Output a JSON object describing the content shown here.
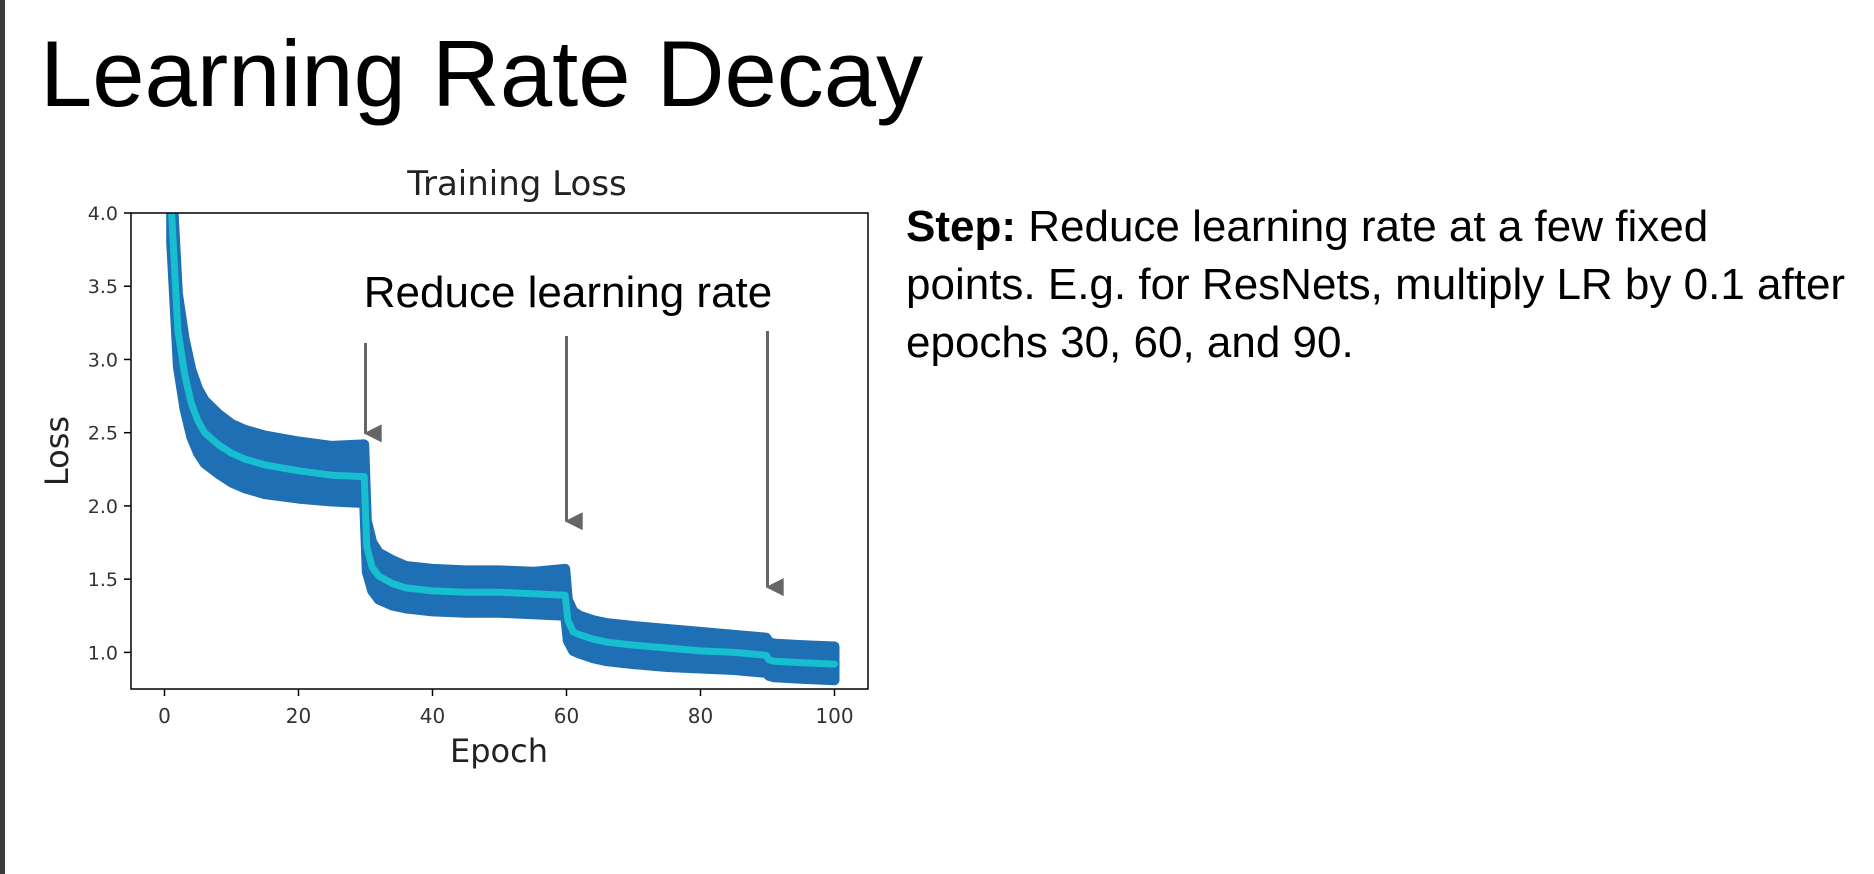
{
  "slide": {
    "title": "Learning Rate Decay",
    "step_label": "Step:",
    "step_text": " Reduce learning rate at a few fixed points. E.g. for ResNets, multiply LR by 0.1 after epochs 30, 60, and 90."
  },
  "chart_data": {
    "type": "line",
    "title": "Training Loss",
    "xlabel": "Epoch",
    "ylabel": "Loss",
    "xlim": [
      -5,
      105
    ],
    "ylim": [
      0.75,
      4.0
    ],
    "xticks": [
      0,
      20,
      40,
      60,
      80,
      100
    ],
    "yticks": [
      1.0,
      1.5,
      2.0,
      2.5,
      3.0,
      3.5,
      4.0
    ],
    "ytick_labels": [
      "1.0",
      "1.5",
      "2.0",
      "2.5",
      "3.0",
      "3.5",
      "4.0"
    ],
    "grid": false,
    "colors": {
      "raw": "#1f6fb4",
      "smoothed": "#17becf",
      "arrow": "#666666"
    },
    "series": [
      {
        "role": "smoothed",
        "x": [
          1,
          2,
          3,
          4,
          5,
          6,
          8,
          10,
          12,
          15,
          20,
          25,
          29.8,
          30.2,
          31,
          32,
          34,
          36,
          40,
          45,
          50,
          55,
          59.8,
          60.2,
          61,
          62,
          64,
          66,
          70,
          75,
          80,
          85,
          89.8,
          90.2,
          91,
          95,
          100
        ],
        "y": [
          4.05,
          3.2,
          2.9,
          2.7,
          2.58,
          2.5,
          2.42,
          2.36,
          2.32,
          2.28,
          2.24,
          2.21,
          2.2,
          1.72,
          1.58,
          1.52,
          1.47,
          1.44,
          1.42,
          1.41,
          1.41,
          1.4,
          1.39,
          1.22,
          1.14,
          1.12,
          1.09,
          1.07,
          1.05,
          1.03,
          1.01,
          1.0,
          0.98,
          0.95,
          0.94,
          0.93,
          0.92
        ]
      },
      {
        "role": "raw_band",
        "x": [
          1,
          2,
          3,
          4,
          5,
          6,
          8,
          10,
          12,
          15,
          20,
          25,
          29.8,
          30.2,
          31,
          32,
          34,
          36,
          40,
          45,
          50,
          55,
          59.8,
          60.2,
          61,
          62,
          64,
          66,
          70,
          75,
          80,
          85,
          89.8,
          90.2,
          91,
          95,
          100
        ],
        "y_low": [
          3.8,
          2.95,
          2.66,
          2.47,
          2.36,
          2.29,
          2.22,
          2.16,
          2.12,
          2.08,
          2.05,
          2.03,
          2.02,
          1.55,
          1.42,
          1.36,
          1.32,
          1.3,
          1.28,
          1.27,
          1.27,
          1.26,
          1.25,
          1.08,
          1.01,
          0.99,
          0.96,
          0.94,
          0.92,
          0.9,
          0.89,
          0.88,
          0.86,
          0.84,
          0.83,
          0.82,
          0.81
        ],
        "y_high": [
          4.3,
          3.45,
          3.14,
          2.93,
          2.8,
          2.72,
          2.63,
          2.56,
          2.52,
          2.48,
          2.44,
          2.41,
          2.42,
          1.9,
          1.75,
          1.68,
          1.63,
          1.59,
          1.57,
          1.56,
          1.56,
          1.55,
          1.57,
          1.36,
          1.28,
          1.25,
          1.22,
          1.2,
          1.18,
          1.16,
          1.14,
          1.12,
          1.1,
          1.07,
          1.06,
          1.05,
          1.04
        ]
      }
    ],
    "annotations": {
      "text": "Reduce learning rate",
      "arrows": [
        {
          "x": 30,
          "tip_y": 2.4
        },
        {
          "x": 60,
          "tip_y": 1.8
        },
        {
          "x": 90,
          "tip_y": 1.35
        }
      ]
    }
  }
}
